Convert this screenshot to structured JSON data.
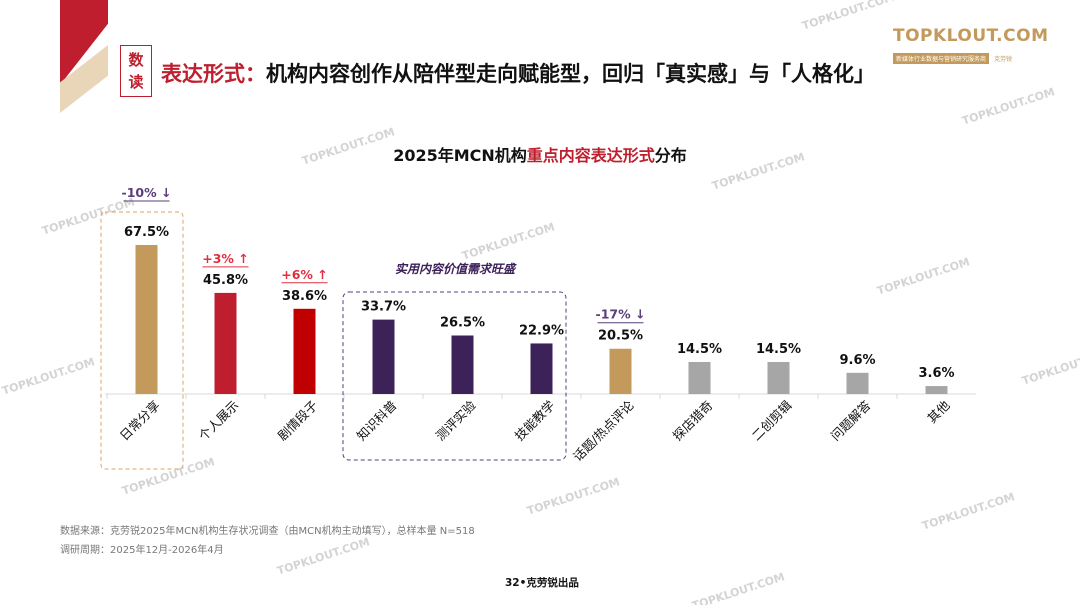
{
  "header": {
    "badge": [
      "数",
      "读"
    ],
    "title_highlight": "表达形式：",
    "title_rest": "机构内容创作从陪伴型走向赋能型，回归「真实感」与「人格化」"
  },
  "logo": {
    "text": "TOPKLOUT.COM",
    "tagline": "新媒体行业数据与营销研究服务商",
    "brand": "克劳锐"
  },
  "watermark": "TOPKLOUT.COM",
  "chart_data": {
    "type": "bar",
    "title_parts": [
      "2025年MCN机构",
      "重点内容表达形式",
      "分布"
    ],
    "categories": [
      "日常分享",
      "个人展示",
      "剧情段子",
      "知识科普",
      "测评实验",
      "技能教学",
      "话题/热点评论",
      "探店猎奇",
      "二创剪辑",
      "问题解答",
      "其他"
    ],
    "values": [
      67.5,
      45.8,
      38.6,
      33.7,
      26.5,
      22.9,
      20.5,
      14.5,
      14.5,
      9.6,
      3.6
    ],
    "value_labels": [
      "67.5%",
      "45.8%",
      "38.6%",
      "33.7%",
      "26.5%",
      "22.9%",
      "20.5%",
      "14.5%",
      "14.5%",
      "9.6%",
      "3.6%"
    ],
    "colors": [
      "#c49a5c",
      "#be1e2d",
      "#c00000",
      "#3d2159",
      "#3d2159",
      "#3d2159",
      "#c49a5c",
      "#a6a6a6",
      "#a6a6a6",
      "#a6a6a6",
      "#a6a6a6"
    ],
    "ylim": [
      0,
      70
    ],
    "annotations": [
      {
        "index": 0,
        "text": "-10% ↓",
        "color": "#5a3d7a"
      },
      {
        "index": 1,
        "text": "+3% ↑",
        "color": "#e03040"
      },
      {
        "index": 2,
        "text": "+6% ↑",
        "color": "#e03040"
      },
      {
        "index": 6,
        "text": "-17% ↓",
        "color": "#5a3d7a"
      }
    ],
    "group_label": "实用内容价值需求旺盛"
  },
  "notes": {
    "source": "数据来源：克劳锐2025年MCN机构生存状况调查（由MCN机构主动填写），总样本量 N=518",
    "period": "调研周期：2025年12月-2026年4月"
  },
  "footer": "32•克劳锐出品"
}
